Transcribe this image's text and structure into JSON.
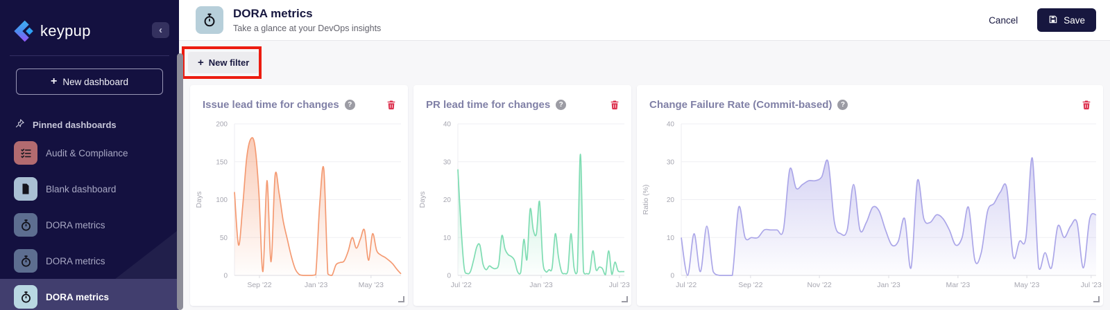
{
  "sidebar": {
    "logo_text": "keypup",
    "collapse_glyph": "‹",
    "new_dashboard_label": "New dashboard",
    "plus_glyph": "+",
    "pinned_label": "Pinned dashboards",
    "items": [
      {
        "label": "Audit & Compliance",
        "icon": "checklist-icon",
        "icon_bg": "#b26b70",
        "selected": false
      },
      {
        "label": "Blank dashboard",
        "icon": "document-icon",
        "icon_bg": "#a9c0d4",
        "selected": false
      },
      {
        "label": "DORA metrics",
        "icon": "stopwatch-icon",
        "icon_bg": "#5d6e90",
        "selected": false
      },
      {
        "label": "DORA metrics",
        "icon": "stopwatch-icon",
        "icon_bg": "#5d6e90",
        "selected": false
      },
      {
        "label": "DORA metrics",
        "icon": "stopwatch-icon",
        "icon_bg": "#b9d8e2",
        "selected": true
      }
    ]
  },
  "header": {
    "title": "DORA metrics",
    "subtitle": "Take a glance at your DevOps insights",
    "cancel_label": "Cancel",
    "save_label": "Save"
  },
  "toolbar": {
    "new_filter_label": "New filter",
    "plus_glyph": "+"
  },
  "help_glyph": "?",
  "colors": {
    "sidebar_bg": "#141140",
    "accent_navy": "#17173f",
    "annotation_red": "#ec1c10",
    "trash_red": "#dd3350",
    "card_title": "#8080a6",
    "axis_text": "#a6a6b0",
    "grid_line": "#efeff3"
  },
  "chart_data": [
    {
      "type": "area",
      "title": "Issue lead time for changes",
      "ylabel": "Days",
      "ylim": [
        0,
        200
      ],
      "yticks": [
        0,
        50,
        100,
        150,
        200
      ],
      "xticks": [
        {
          "label": "Sep '22",
          "pos": 0.15
        },
        {
          "label": "Jan '23",
          "pos": 0.49
        },
        {
          "label": "May '23",
          "pos": 0.82
        }
      ],
      "color": "#f49a72",
      "values": [
        110,
        40,
        90,
        155,
        180,
        172,
        110,
        5,
        125,
        18,
        132,
        108,
        72,
        48,
        25,
        8,
        1,
        0,
        0,
        0,
        1,
        95,
        140,
        2,
        0,
        14,
        17,
        19,
        32,
        50,
        36,
        48,
        60,
        20,
        55,
        33,
        27,
        24,
        20,
        15,
        8,
        2
      ]
    },
    {
      "type": "area",
      "title": "PR lead time for changes",
      "ylabel": "Days",
      "ylim": [
        0,
        40
      ],
      "yticks": [
        0,
        10,
        20,
        30,
        40
      ],
      "xticks": [
        {
          "label": "Jul '22",
          "pos": 0.02
        },
        {
          "label": "Jan '23",
          "pos": 0.5
        },
        {
          "label": "Jul '23",
          "pos": 0.97
        }
      ],
      "color": "#7edcb2",
      "values": [
        28,
        13,
        2,
        0.5,
        1,
        4,
        7.5,
        8,
        3,
        1.5,
        2.5,
        2,
        1.8,
        3,
        10.5,
        7,
        5.5,
        5,
        4,
        1,
        0.8,
        9.5,
        4.2,
        17.5,
        12,
        11,
        19.5,
        4,
        1,
        1.5,
        2,
        11,
        5,
        1,
        0.5,
        1.2,
        11,
        2,
        1,
        32,
        1,
        0.5,
        1,
        6.5,
        1.5,
        2.2,
        1.8,
        0.2,
        6.5,
        0.3,
        3.5,
        1.2,
        1,
        1
      ]
    },
    {
      "type": "area",
      "title": "Change Failure Rate (Commit-based)",
      "ylabel": "Ratio (%)",
      "ylim": [
        0,
        40
      ],
      "yticks": [
        0,
        10,
        20,
        30,
        40
      ],
      "xticks": [
        {
          "label": "Jul '22",
          "pos": 0.012
        },
        {
          "label": "Sep '22",
          "pos": 0.167
        },
        {
          "label": "Nov '22",
          "pos": 0.333
        },
        {
          "label": "Jan '23",
          "pos": 0.5
        },
        {
          "label": "Mar '23",
          "pos": 0.667
        },
        {
          "label": "May '23",
          "pos": 0.833
        },
        {
          "label": "Jul '23",
          "pos": 0.988
        }
      ],
      "color": "#aba6e8",
      "values": [
        10,
        0,
        11,
        1,
        13,
        1,
        0,
        0,
        0,
        18,
        10,
        10,
        10,
        12,
        12,
        12,
        12,
        28,
        23,
        24,
        25,
        25,
        26,
        30,
        14,
        11,
        12,
        24,
        12,
        14,
        18,
        17,
        12,
        8,
        9,
        15,
        2,
        25,
        15,
        14,
        16,
        15,
        12,
        8,
        10,
        18,
        4,
        6,
        17,
        19,
        22,
        23,
        5,
        9,
        10,
        31,
        2,
        6,
        2,
        13,
        10,
        13,
        14,
        2,
        15,
        16
      ]
    }
  ]
}
